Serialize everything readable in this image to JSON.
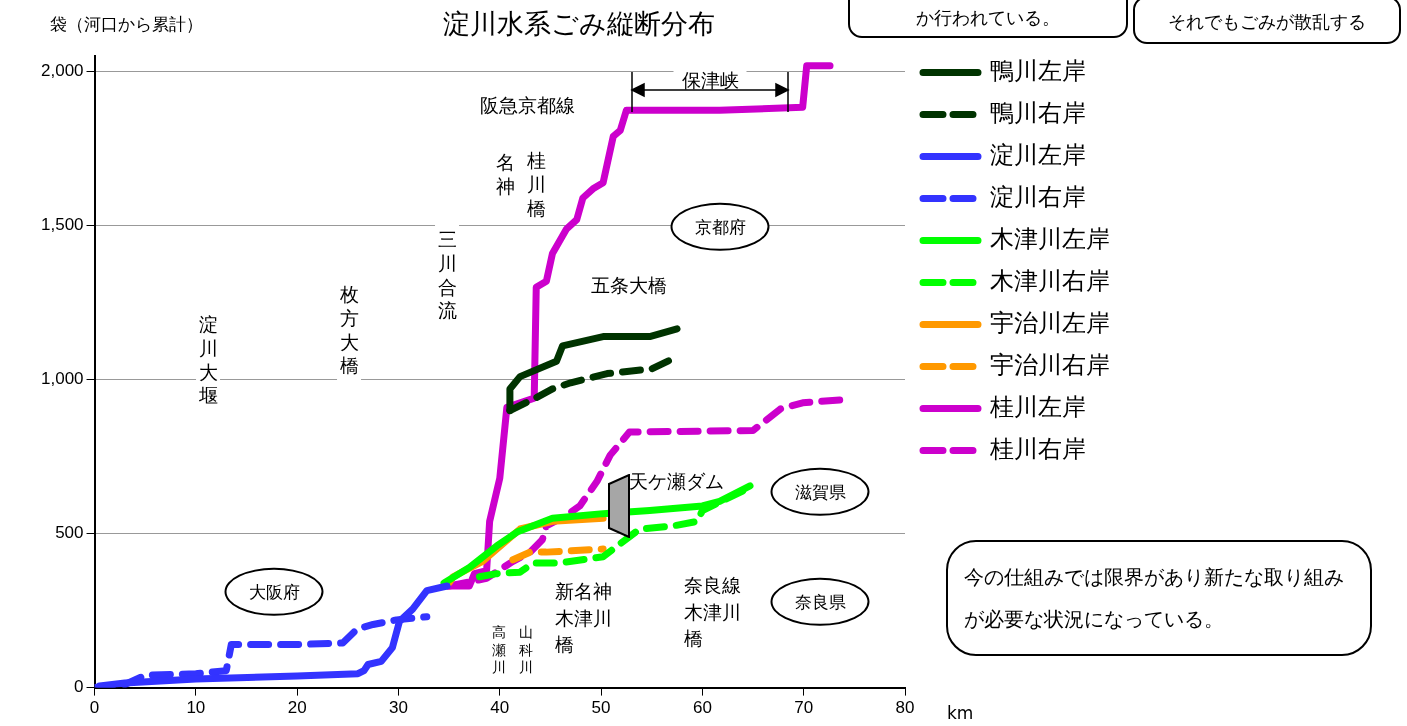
{
  "chart_data": {
    "type": "line",
    "title": "淀川水系ごみ縦断分布",
    "xlabel": "km",
    "ylabel": "袋（河口から累計）",
    "xlim": [
      0,
      80
    ],
    "xticks": [
      0,
      10,
      20,
      30,
      40,
      50,
      60,
      70,
      80
    ],
    "ylim": [
      0,
      2050
    ],
    "yticks": [
      {
        "value": 0,
        "label": "0"
      },
      {
        "value": 500,
        "label": "500"
      },
      {
        "value": 1000,
        "label": "1,000"
      },
      {
        "value": 1500,
        "label": "1,500"
      },
      {
        "value": 2000,
        "label": "2,000"
      }
    ],
    "grid": "y",
    "legend": "right",
    "marker": "none",
    "series": [
      {
        "name": "鴨川左岸",
        "color": "#003300",
        "line_style": "solid",
        "x": [
          41,
          41,
          42,
          45.6,
          46.2,
          50.2,
          54.8,
          57.5
        ],
        "values": [
          900,
          970,
          1010,
          1060,
          1110,
          1140,
          1140,
          1165
        ]
      },
      {
        "name": "鴨川右岸",
        "color": "#003300",
        "line_style": "dashed",
        "x": [
          41,
          43.5,
          45.2,
          47,
          50.6,
          55,
          57.5
        ],
        "values": [
          900,
          940,
          970,
          990,
          1020,
          1035,
          1075
        ]
      },
      {
        "name": "淀川左岸",
        "color": "#3333ff",
        "line_style": "solid",
        "x": [
          0.5,
          3,
          10,
          20,
          26,
          26.6,
          27,
          28.3,
          29.4,
          30.1,
          31.4,
          32.8,
          34.8
        ],
        "values": [
          5,
          15,
          28,
          38,
          45,
          55,
          75,
          85,
          130,
          215,
          255,
          315,
          330
        ]
      },
      {
        "name": "淀川右岸",
        "color": "#3333ff",
        "line_style": "dashed",
        "x": [
          0,
          3,
          5,
          10,
          13,
          13.5,
          20,
          24.5,
          25.9,
          27.5,
          29.8,
          32.8
        ],
        "values": [
          0,
          10,
          40,
          45,
          55,
          140,
          140,
          145,
          190,
          205,
          220,
          230
        ]
      },
      {
        "name": "木津川左岸",
        "color": "#00ff00",
        "line_style": "solid",
        "x": [
          34.5,
          37,
          39.7,
          41.7,
          45.2,
          50.2,
          54.8,
          60,
          61.7,
          64.7
        ],
        "values": [
          340,
          390,
          460,
          505,
          550,
          565,
          575,
          590,
          605,
          655
        ]
      },
      {
        "name": "木津川右岸",
        "color": "#00ff00",
        "line_style": "dashed",
        "x": [
          38,
          39.7,
          42,
          43.3,
          45.9,
          50.2,
          53.8,
          57.1,
          59.5,
          60,
          64.7
        ],
        "values": [
          360,
          370,
          375,
          405,
          405,
          425,
          515,
          525,
          540,
          575,
          650
        ]
      },
      {
        "name": "宇治川左岸",
        "color": "#ff9900",
        "line_style": "solid",
        "x": [
          35,
          35.4,
          38.3,
          42,
          45.2,
          50.2
        ],
        "values": [
          340,
          360,
          410,
          515,
          540,
          550
        ]
      },
      {
        "name": "宇治川右岸",
        "color": "#ff9900",
        "line_style": "dashed",
        "x": [
          41.3,
          43,
          44.6,
          50.2
        ],
        "values": [
          415,
          440,
          440,
          450
        ]
      },
      {
        "name": "桂川左岸",
        "color": "#cc00cc",
        "line_style": "solid",
        "x": [
          34.8,
          37,
          37.5,
          38.7,
          39,
          40,
          40.7,
          43.4,
          43.6,
          44.6,
          45.2,
          46.6,
          47.6,
          48.2,
          49.2,
          50.2,
          51.2,
          51.9,
          52.5,
          61.7,
          69.9,
          70.3,
          72.6
        ],
        "values": [
          330,
          330,
          370,
          380,
          540,
          680,
          910,
          940,
          1300,
          1320,
          1410,
          1490,
          1520,
          1590,
          1620,
          1640,
          1790,
          1810,
          1875,
          1875,
          1885,
          2020,
          2020
        ]
      },
      {
        "name": "桂川右岸",
        "color": "#cc00cc",
        "line_style": "dashed",
        "x": [
          35,
          38.7,
          41.3,
          43,
          44.2,
          44.6,
          46.6,
          47.9,
          49.6,
          50.9,
          52.8,
          65,
          67.7,
          69.9,
          73.9
        ],
        "values": [
          330,
          355,
          410,
          440,
          480,
          525,
          560,
          590,
          670,
          755,
          830,
          835,
          905,
          925,
          935
        ]
      }
    ],
    "annotations": [
      "か行われている。",
      "それでもごみが散乱する",
      "今の仕組みでは限界があり新たな取り組みが必要な状況になっている。",
      "淀川大堰",
      "枚方大橋",
      "三川合流",
      "高瀬川",
      "山科川",
      "名神",
      "桂川橋",
      "阪急京都線",
      "五条大橋",
      "新名神木津川橋",
      "奈良線木津川橋",
      "天ケ瀬ダム",
      "京都府",
      "滋賀県",
      "奈良県",
      "大阪府",
      "保津峡"
    ]
  }
}
